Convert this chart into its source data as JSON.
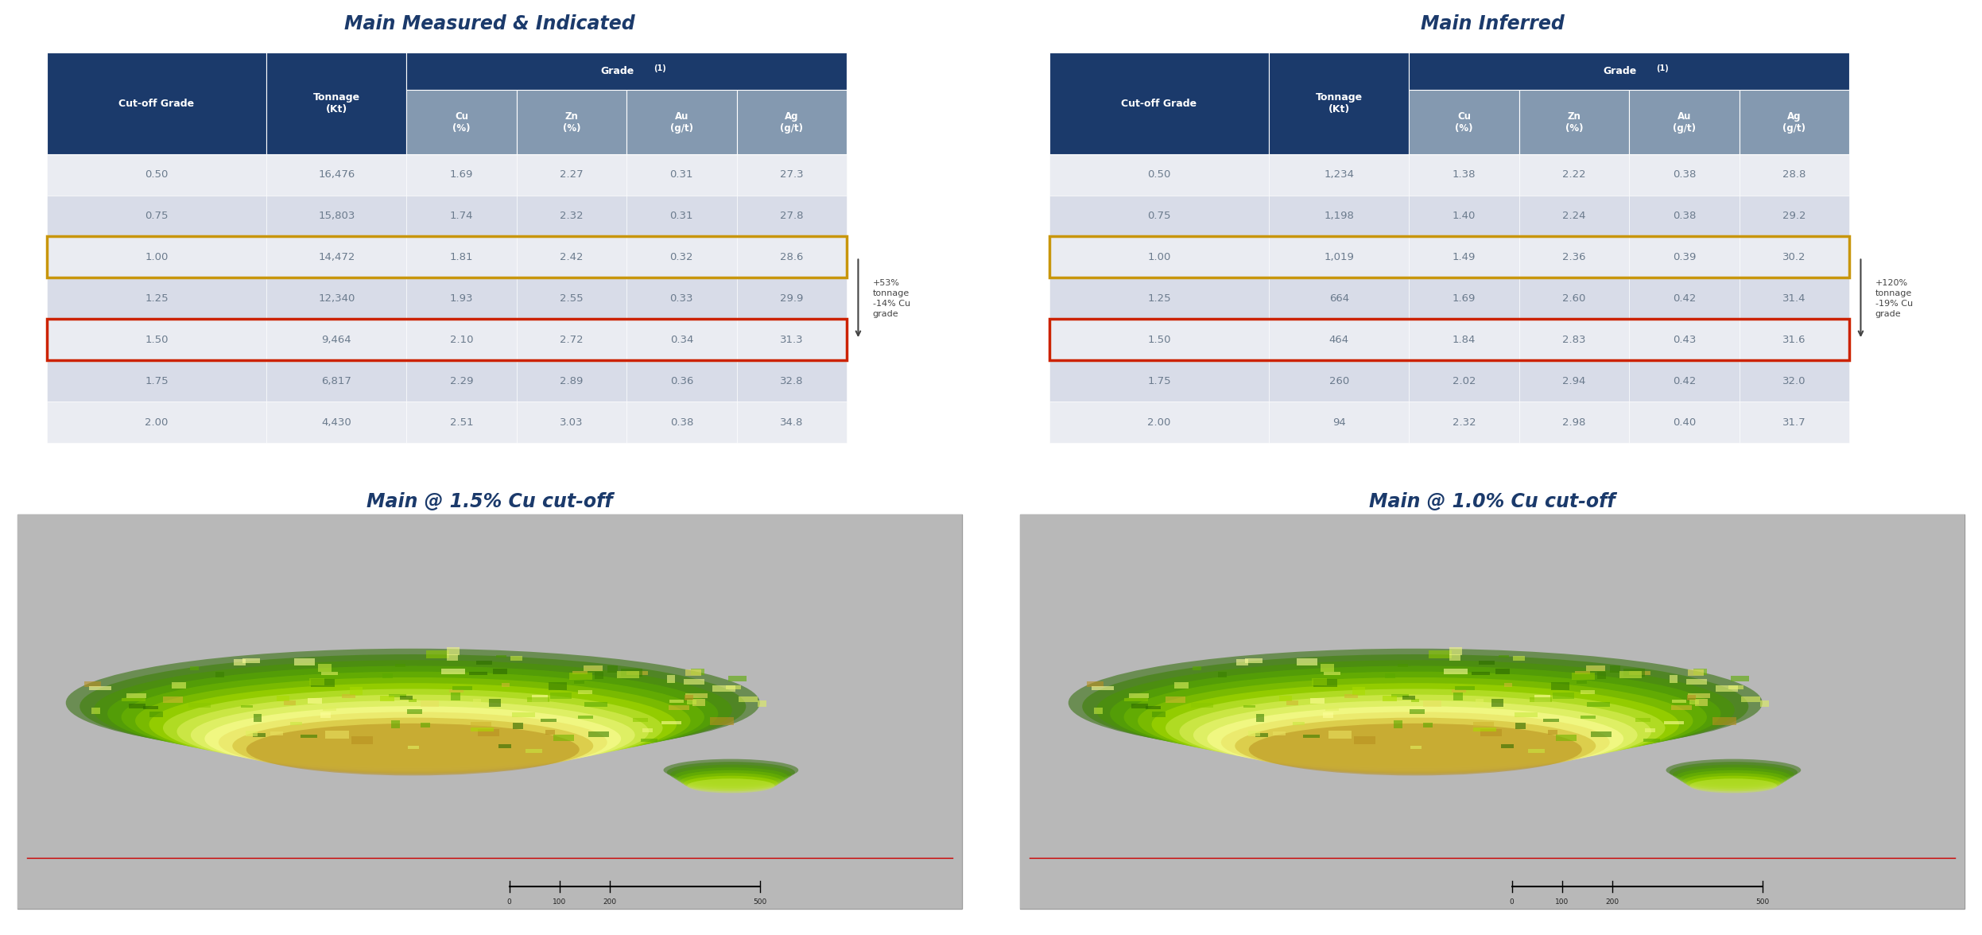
{
  "title_mi": "Main Measured & Indicated",
  "title_inf": "Main Inferred",
  "title_bottom_left": "Main @ 1.5% Cu cut-off",
  "title_bottom_right": "Main @ 1.0% Cu cut-off",
  "header_bg": "#1B3A6B",
  "header_subgrade_bg": "#8499B0",
  "row_bg_odd": "#EAECF2",
  "row_bg_even": "#D8DCE8",
  "title_color": "#1B3A6B",
  "text_color": "#6B7B8D",
  "orange_border": "#C8960C",
  "red_border": "#CC2200",
  "mi_data": [
    [
      "0.50",
      "16,476",
      "1.69",
      "2.27",
      "0.31",
      "27.3"
    ],
    [
      "0.75",
      "15,803",
      "1.74",
      "2.32",
      "0.31",
      "27.8"
    ],
    [
      "1.00",
      "14,472",
      "1.81",
      "2.42",
      "0.32",
      "28.6"
    ],
    [
      "1.25",
      "12,340",
      "1.93",
      "2.55",
      "0.33",
      "29.9"
    ],
    [
      "1.50",
      "9,464",
      "2.10",
      "2.72",
      "0.34",
      "31.3"
    ],
    [
      "1.75",
      "6,817",
      "2.29",
      "2.89",
      "0.36",
      "32.8"
    ],
    [
      "2.00",
      "4,430",
      "2.51",
      "3.03",
      "0.38",
      "34.8"
    ]
  ],
  "mi_orange_row": 2,
  "mi_red_row": 4,
  "inf_data": [
    [
      "0.50",
      "1,234",
      "1.38",
      "2.22",
      "0.38",
      "28.8"
    ],
    [
      "0.75",
      "1,198",
      "1.40",
      "2.24",
      "0.38",
      "29.2"
    ],
    [
      "1.00",
      "1,019",
      "1.49",
      "2.36",
      "0.39",
      "30.2"
    ],
    [
      "1.25",
      "664",
      "1.69",
      "2.60",
      "0.42",
      "31.4"
    ],
    [
      "1.50",
      "464",
      "1.84",
      "2.83",
      "0.43",
      "31.6"
    ],
    [
      "1.75",
      "260",
      "2.02",
      "2.94",
      "0.42",
      "32.0"
    ],
    [
      "2.00",
      "94",
      "2.32",
      "2.98",
      "0.40",
      "31.7"
    ]
  ],
  "inf_orange_row": 2,
  "inf_red_row": 4,
  "annotation_mi": "+53%\ntonnage\n-14% Cu\ngrade",
  "annotation_inf": "+120%\ntonnage\n-19% Cu\ngrade",
  "bg_color": "#FFFFFF",
  "bottom_bg": "#C0C0C0"
}
